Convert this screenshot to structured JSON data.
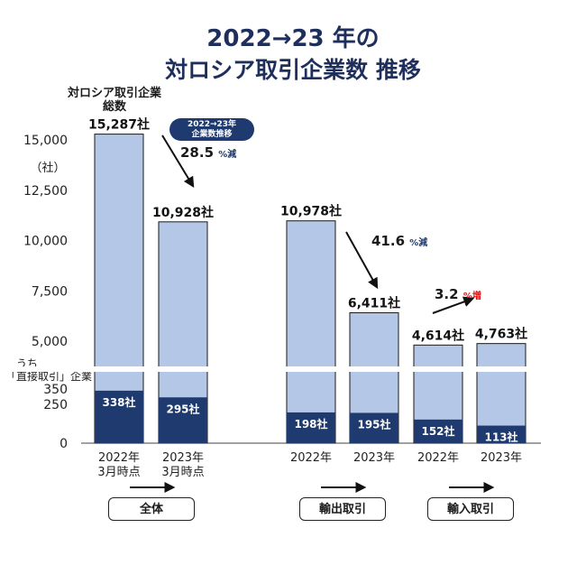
{
  "title": {
    "line1": "2022→23 年の",
    "line2": "対ロシア取引企業数  推移"
  },
  "labels": {
    "total_line1": "対ロシア取引企業",
    "total_line2": "総数",
    "unit": "（社）",
    "direct_line1": "うち",
    "direct_line2": "「直接取引」企業",
    "pill_line1": "2022→23年",
    "pill_line2": "企業数推移"
  },
  "changes": [
    {
      "value": "28.5",
      "unit": "%減"
    },
    {
      "value": "41.6",
      "unit": "%減"
    },
    {
      "value": "3.2",
      "unit": "%増"
    }
  ],
  "groups": [
    "全体",
    "輸出取引",
    "輸入取引"
  ],
  "colors": {
    "total": "#b4c7e7",
    "direct": "#1f3a6e",
    "title": "#1f2f5c",
    "increase": "#dd1111"
  },
  "chart_data": {
    "type": "bar",
    "y_ticks": [
      "15,000",
      "12,500",
      "10,000",
      "7,500",
      "5,000",
      "350",
      "250",
      "0"
    ],
    "y_axis_break": "between 350 and 5,000",
    "bars": [
      {
        "category": [
          "2022年",
          "3月時点"
        ],
        "total": 15287,
        "total_label": "15,287社",
        "direct": 338,
        "direct_label": "338社"
      },
      {
        "category": [
          "2023年",
          "3月時点"
        ],
        "total": 10928,
        "total_label": "10,928社",
        "direct": 295,
        "direct_label": "295社"
      },
      {
        "category": [
          "2022年"
        ],
        "total": 10978,
        "total_label": "10,978社",
        "direct": 198,
        "direct_label": "198社"
      },
      {
        "category": [
          "2023年"
        ],
        "total": 6411,
        "total_label": "6,411社",
        "direct": 195,
        "direct_label": "195社"
      },
      {
        "category": [
          "2022年"
        ],
        "total": 4614,
        "total_label": "4,614社",
        "direct": 152,
        "direct_label": "152社"
      },
      {
        "category": [
          "2023年"
        ],
        "total": 4763,
        "total_label": "4,763社",
        "direct": 113,
        "direct_label": "113社"
      }
    ]
  }
}
